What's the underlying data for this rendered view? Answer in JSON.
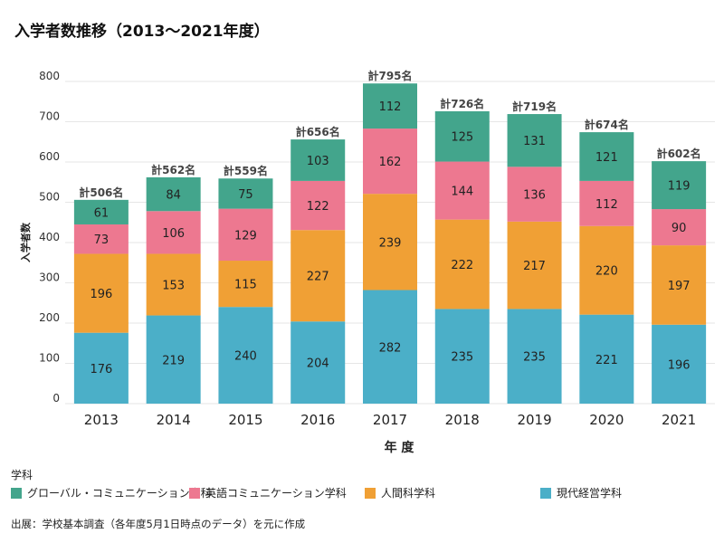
{
  "title": "入学者数推移（2013〜2021年度）",
  "chart_data": {
    "type": "bar",
    "stacked": true,
    "xlabel": "年 度",
    "ylabel": "入学者数",
    "ylim": [
      0,
      800
    ],
    "yticks": [
      0,
      100,
      200,
      300,
      400,
      500,
      600,
      700,
      800
    ],
    "grid": true,
    "categories": [
      "2013",
      "2014",
      "2015",
      "2016",
      "2017",
      "2018",
      "2019",
      "2020",
      "2021"
    ],
    "series": [
      {
        "name": "現代経営学科",
        "color": "#4bafc8",
        "values": [
          176,
          219,
          240,
          204,
          282,
          235,
          235,
          221,
          196
        ]
      },
      {
        "name": "人間科学科",
        "color": "#f0a035",
        "values": [
          196,
          153,
          115,
          227,
          239,
          222,
          217,
          220,
          197
        ]
      },
      {
        "name": "英語コミュニケーション学科",
        "color": "#ed7890",
        "values": [
          73,
          106,
          129,
          122,
          162,
          144,
          136,
          112,
          90
        ]
      },
      {
        "name": "グローバル・コミュニケーション学科",
        "color": "#43a58c",
        "values": [
          61,
          84,
          75,
          103,
          112,
          125,
          131,
          121,
          119
        ]
      }
    ],
    "totals": [
      "計506名",
      "計562名",
      "計559名",
      "計656名",
      "計795名",
      "計726名",
      "計719名",
      "計674名",
      "計602名"
    ],
    "legend_title": "学科",
    "legend": [
      {
        "label": "グローバル・コミュニケーション学科",
        "color": "#43a58c"
      },
      {
        "label": "英語コミュニケーション学科",
        "color": "#ed7890"
      },
      {
        "label": "人間科学科",
        "color": "#f0a035"
      },
      {
        "label": "現代経営学科",
        "color": "#4bafc8"
      }
    ],
    "legend_position": "bottom"
  },
  "source": "出展：学校基本調査（各年度5月1日時点のデータ）を元に作成"
}
